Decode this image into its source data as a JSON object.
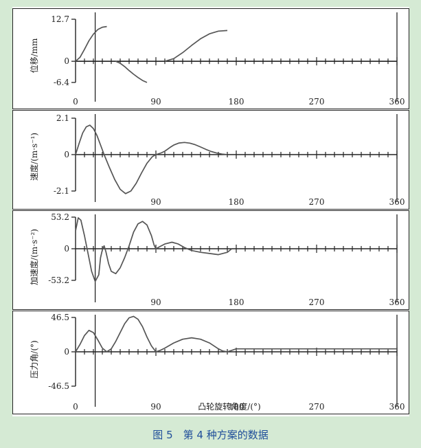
{
  "figure": {
    "caption": "图 5　第 4 种方案的数据",
    "shared_xlabel": "凸轮旋转角度/(°)"
  },
  "colors": {
    "background": "#d5ead4",
    "panel": "#ffffff",
    "curve": "#555555",
    "axis": "#222222",
    "caption": "#1f4e9a"
  },
  "chart_data": [
    {
      "type": "line",
      "ylabel": "位移/mm",
      "xlim": [
        0,
        360
      ],
      "ylim": [
        -6.4,
        12.7
      ],
      "yticks": [
        "12.7",
        "0",
        "-6.4"
      ],
      "yticks_values": [
        12.7,
        0,
        -6.4
      ],
      "xticks": [
        "0",
        "90",
        "180",
        "270",
        "360"
      ],
      "xticks_values": [
        0,
        90,
        180,
        270,
        360
      ],
      "vlines": [
        22,
        360
      ],
      "series": [
        {
          "x": [
            0,
            5,
            10,
            15,
            20,
            25,
            30,
            35
          ],
          "y": [
            0,
            1.2,
            3.6,
            6.2,
            8.2,
            9.6,
            10.3,
            10.5
          ]
        },
        {
          "x": [
            45,
            50,
            55,
            60,
            65,
            70,
            75,
            80
          ],
          "y": [
            0,
            -0.6,
            -1.6,
            -2.8,
            -3.9,
            -4.9,
            -5.8,
            -6.4
          ]
        },
        {
          "x": [
            100,
            110,
            120,
            130,
            140,
            150,
            160,
            170
          ],
          "y": [
            0,
            0.8,
            2.6,
            4.8,
            6.8,
            8.3,
            9.1,
            9.3
          ]
        }
      ]
    },
    {
      "type": "line",
      "ylabel": "速度/(m·s⁻¹)",
      "xlim": [
        0,
        360
      ],
      "ylim": [
        -2.1,
        2.1
      ],
      "yticks": [
        "2.1",
        "0",
        "-2.1"
      ],
      "yticks_values": [
        2.1,
        0,
        -2.1
      ],
      "xticks": [
        "90",
        "180",
        "270",
        "360"
      ],
      "xticks_values": [
        90,
        180,
        270,
        360
      ],
      "vlines": [
        22,
        360
      ],
      "series": [
        {
          "x": [
            0,
            4,
            8,
            12,
            16,
            20,
            24,
            28,
            32,
            38,
            44,
            50,
            56,
            62,
            68,
            74,
            80,
            86,
            90,
            96,
            100,
            106,
            110,
            116,
            122,
            128,
            134,
            140,
            146,
            152,
            158,
            164,
            170
          ],
          "y": [
            0,
            0.65,
            1.25,
            1.6,
            1.7,
            1.5,
            1.1,
            0.55,
            0,
            -0.75,
            -1.45,
            -2.0,
            -2.25,
            -2.1,
            -1.65,
            -1.05,
            -0.5,
            -0.12,
            0,
            0.1,
            0.2,
            0.42,
            0.55,
            0.67,
            0.7,
            0.66,
            0.57,
            0.44,
            0.3,
            0.18,
            0.09,
            0.03,
            0
          ]
        }
      ]
    },
    {
      "type": "line",
      "ylabel": "加速度/(m·s⁻²)",
      "xlim": [
        0,
        360
      ],
      "ylim": [
        -53.2,
        53.2
      ],
      "yticks": [
        "53.2",
        "0",
        "-53.2"
      ],
      "yticks_values": [
        53.2,
        0,
        -53.2
      ],
      "xticks": [
        "90",
        "180",
        "270",
        "360"
      ],
      "xticks_values": [
        90,
        180,
        270,
        360
      ],
      "vlines": [
        22,
        360
      ],
      "series": [
        {
          "x": [
            0,
            3,
            6,
            10,
            14,
            18,
            22,
            26,
            28,
            30,
            32,
            34,
            37,
            40,
            45,
            50,
            55,
            60,
            65,
            70,
            75,
            80,
            85,
            88,
            90,
            95,
            100,
            108,
            115,
            122,
            130,
            140,
            150,
            160,
            170,
            175
          ],
          "y": [
            30,
            52,
            48,
            22,
            -8,
            -38,
            -55,
            -44,
            -15,
            -2,
            5,
            -5,
            -25,
            -38,
            -42,
            -32,
            -15,
            5,
            28,
            42,
            46,
            40,
            22,
            6,
            0,
            4,
            8,
            11,
            8,
            2,
            -3,
            -6,
            -8,
            -10,
            -6,
            0
          ]
        }
      ]
    },
    {
      "type": "line",
      "ylabel": "压力角/(°)",
      "xlim": [
        0,
        360
      ],
      "ylim": [
        -46.5,
        46.5
      ],
      "yticks": [
        "46.5",
        "0",
        "-46.5"
      ],
      "yticks_values": [
        46.5,
        0,
        -46.5
      ],
      "xticks": [
        "0",
        "90",
        "180",
        "270",
        "360"
      ],
      "xticks_values": [
        0,
        90,
        180,
        270,
        360
      ],
      "vlines": [
        22,
        360
      ],
      "series": [
        {
          "x": [
            0,
            5,
            10,
            15,
            20,
            25,
            30,
            35,
            40,
            45,
            50,
            55,
            60,
            65,
            70,
            75,
            80,
            85,
            90,
            95,
            100,
            110,
            120,
            130,
            140,
            150,
            160,
            165,
            170,
            180,
            200,
            250,
            300,
            360
          ],
          "y": [
            0,
            10,
            22,
            29,
            26,
            16,
            5,
            0,
            4,
            14,
            26,
            38,
            46,
            48,
            44,
            34,
            20,
            8,
            0,
            2,
            5,
            12,
            17,
            19,
            17,
            12,
            4,
            1,
            0,
            4,
            4,
            4,
            4,
            4
          ]
        }
      ]
    }
  ]
}
